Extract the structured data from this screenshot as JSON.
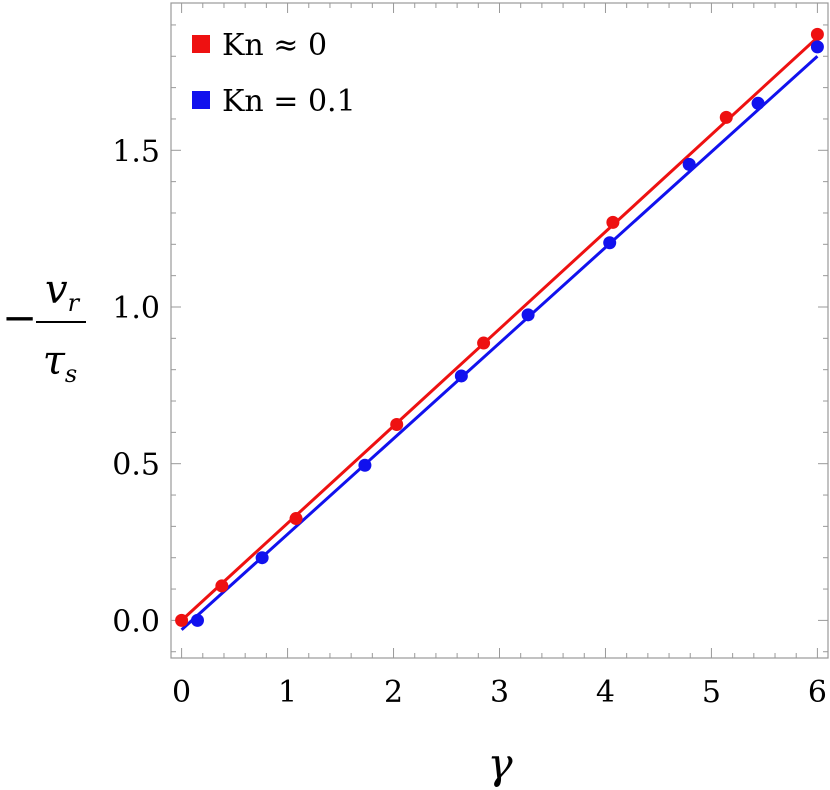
{
  "chart_data": {
    "type": "scatter",
    "title": "",
    "xlabel": "γ",
    "ylabel": {
      "prefix": "−",
      "numerator": "v",
      "numerator_sub": "r",
      "denominator": "τ",
      "denominator_sub": "s"
    },
    "xlim": [
      -0.1,
      6.1
    ],
    "ylim": [
      -0.12,
      1.97
    ],
    "x_ticks": [
      0,
      1,
      2,
      3,
      4,
      5,
      6
    ],
    "x_tick_labels": [
      "0",
      "1",
      "2",
      "3",
      "4",
      "5",
      "6"
    ],
    "y_ticks": [
      0.0,
      0.5,
      1.0,
      1.5
    ],
    "y_tick_labels": [
      "0.0",
      "0.5",
      "1.0",
      "1.5"
    ],
    "grid": false,
    "legend_position": "top-left",
    "series": [
      {
        "name": "Kn ≈ 0",
        "color": "#ee1111",
        "x": [
          0.0,
          0.38,
          1.08,
          2.03,
          2.85,
          4.07,
          5.14,
          6.0
        ],
        "y": [
          0.0,
          0.11,
          0.325,
          0.625,
          0.885,
          1.27,
          1.605,
          1.87
        ],
        "fit_line": {
          "x": [
            0.0,
            6.0
          ],
          "y": [
            0.0,
            1.86
          ]
        }
      },
      {
        "name": "Kn = 0.1",
        "color": "#1111ee",
        "x": [
          0.15,
          0.76,
          1.73,
          2.64,
          3.27,
          4.04,
          4.79,
          5.44,
          6.0
        ],
        "y": [
          0.0,
          0.2,
          0.495,
          0.78,
          0.975,
          1.205,
          1.455,
          1.65,
          1.83
        ],
        "fit_line": {
          "x": [
            0.0,
            6.0
          ],
          "y": [
            -0.03,
            1.8
          ]
        }
      }
    ]
  }
}
